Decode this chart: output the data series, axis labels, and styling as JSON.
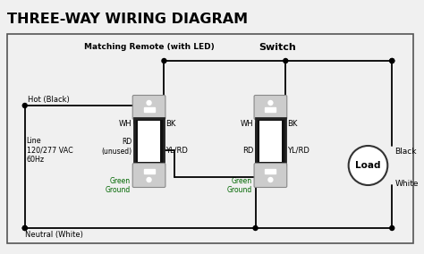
{
  "title": "THREE-WAY WIRING DIAGRAM",
  "bg_color": "#f0f0f0",
  "title_color": "#000000",
  "switch1_label": "Matching Remote (with LED)",
  "switch2_label": "Switch",
  "load_label": "Load",
  "load_black": "Black",
  "load_white": "White",
  "sw1_wire_wh": "WH",
  "sw1_wire_bk": "BK",
  "sw1_wire_rd": "RD\n(unused)",
  "sw1_wire_ylrd": "YL/RD",
  "sw2_wire_wh": "WH",
  "sw2_wire_bk": "BK",
  "sw2_wire_rd": "RD",
  "sw2_wire_ylrd": "YL/RD",
  "ground_label": "Green\nGround",
  "hot_label": "Hot (Black)",
  "line_label": "Line\n120/277 VAC\n60Hz",
  "neutral_label": "Neutral (White)",
  "border_color": "#555555",
  "wire_color": "#000000",
  "ground_color": "#006600",
  "sw_body_color": "#cccccc",
  "sw_rocker_color": "#ffffff",
  "sw_frame_color": "#888888"
}
